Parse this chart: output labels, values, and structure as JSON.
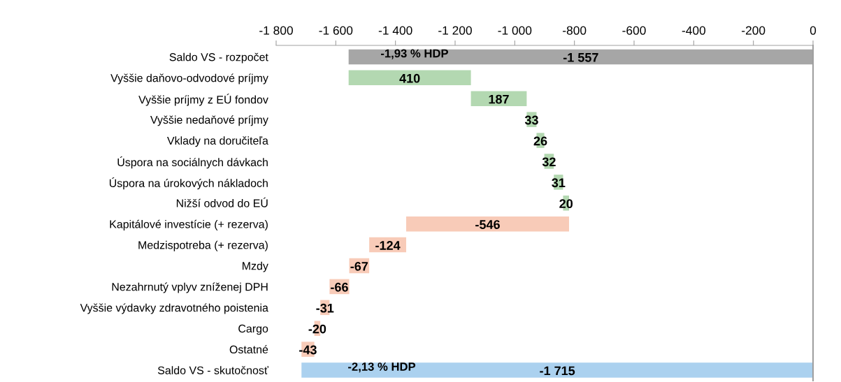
{
  "chart_data": {
    "type": "bar",
    "orientation": "horizontal",
    "categories": [
      "Saldo VS - rozpočet",
      "Vyššie daňovo-odvodové príjmy",
      "Vyššie príjmy z EÚ fondov",
      "Vyššie nedaňové príjmy",
      "Vklady na doručiteľa",
      "Úspora na sociálnych dávkach",
      "Úspora na úrokových nákladoch",
      "Nižší odvod do EÚ",
      "Kapitálové investície (+ rezerva)",
      "Medzispotreba (+ rezerva)",
      "Mzdy",
      "Nezahrnutý vplyv zníženej DPH",
      "Vyššie výdavky zdravotného poistenia",
      "Cargo",
      "Ostatné",
      "Saldo VS - skutočnosť"
    ],
    "values": [
      -1557,
      410,
      187,
      33,
      26,
      32,
      31,
      20,
      -546,
      -124,
      -67,
      -66,
      -31,
      -20,
      -43,
      -1715
    ],
    "base": [
      0,
      -1557,
      -1147,
      -960,
      -927,
      -901,
      -869,
      -838,
      -818,
      -1364,
      -1488,
      -1555,
      -1621,
      -1652,
      -1672,
      0
    ],
    "colors": [
      "#a6a6a6",
      "#b3d8b1",
      "#b3d8b1",
      "#b3d8b1",
      "#b3d8b1",
      "#b3d8b1",
      "#b3d8b1",
      "#b3d8b1",
      "#f8cbb8",
      "#f8cbb8",
      "#f8cbb8",
      "#f8cbb8",
      "#f8cbb8",
      "#f8cbb8",
      "#f8cbb8",
      "#abd1ef"
    ],
    "value_labels": [
      "-1 557",
      "410",
      "187",
      "33",
      "26",
      "32",
      "31",
      "20",
      "-546",
      "-124",
      "-67",
      "-66",
      "-31",
      "-20",
      "-43",
      "-1 715"
    ],
    "xlim": [
      -1800,
      0
    ],
    "xticks": [
      {
        "value": -1800,
        "label": "-1 800"
      },
      {
        "value": -1600,
        "label": "-1 600"
      },
      {
        "value": -1400,
        "label": "-1 400"
      },
      {
        "value": -1200,
        "label": "-1 200"
      },
      {
        "value": -1000,
        "label": "-1 000"
      },
      -800,
      -600,
      -400,
      -200,
      0
    ],
    "annotations": [
      {
        "text": "-1,93 % HDP",
        "x": -1450,
        "y": "Saldo VS - rozpočet"
      },
      {
        "text": "-2,13 % HDP",
        "x": -1560,
        "y": "Saldo VS - skutočnosť"
      }
    ],
    "grid": false,
    "legend": false
  }
}
